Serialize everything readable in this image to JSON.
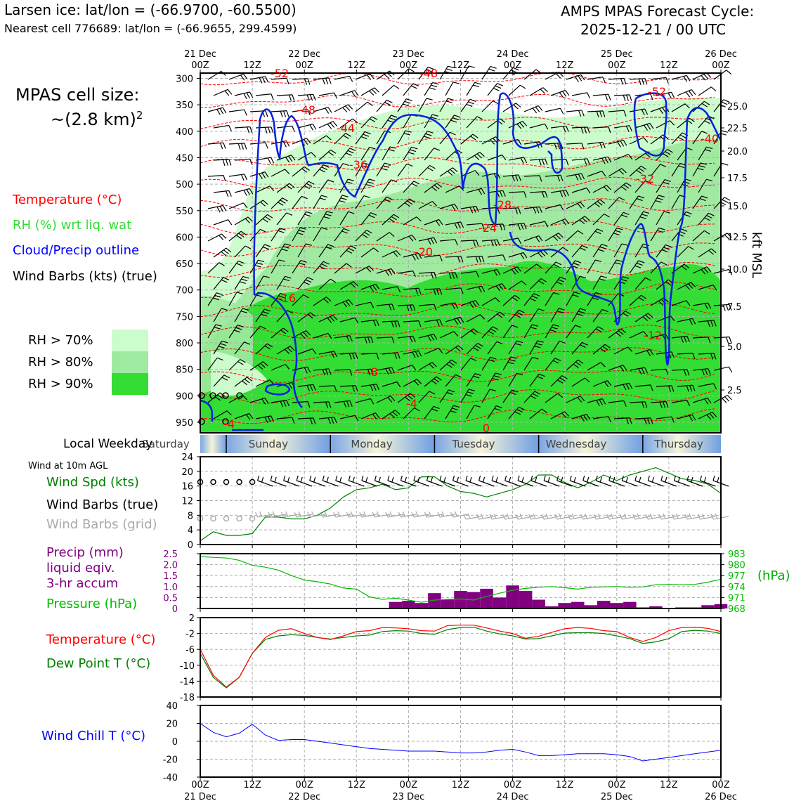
{
  "header": {
    "title_left": "Larsen ice: lat/lon = (-66.9700, -60.5500)",
    "subtitle_left": "Nearest cell 776689: lat/lon = (-66.9655, 299.4599)",
    "title_right_1": "AMPS MPAS Forecast Cycle:",
    "title_right_2": "2025-12-21 / 00 UTC"
  },
  "cell_size": {
    "label": "MPAS cell size:",
    "value": "~(2.8 km)",
    "exp": "2"
  },
  "legend": {
    "temperature": "Temperature (°C)",
    "rh": "RH (%) wrt liq. wat",
    "cloud": "Cloud/Precip outline",
    "wind": "Wind Barbs (kts) (true)",
    "rh70": "RH > 70%",
    "rh80": "RH > 80%",
    "rh90": "RH > 90%"
  },
  "colors": {
    "rh70": "#ccfccc",
    "rh80": "#a0e9a0",
    "rh90": "#33dd33",
    "temp": "#ff0000",
    "dew": "#008000",
    "pressure": "#00aa00",
    "precip": "#800080",
    "windchill": "#0000ff",
    "cloud": "#0022dd"
  },
  "time_axis": {
    "ticks": [
      "00Z",
      "12Z",
      "00Z",
      "12Z",
      "00Z",
      "12Z",
      "00Z",
      "12Z",
      "00Z",
      "12Z",
      "00Z"
    ],
    "dates": [
      "21 Dec",
      "22 Dec",
      "23 Dec",
      "24 Dec",
      "25 Dec",
      "26 Dec"
    ]
  },
  "weekday": {
    "label": "Local Weekday",
    "days": [
      "Saturday",
      "Sunday",
      "Monday",
      "Tuesday",
      "Wednesday",
      "Thursday"
    ]
  },
  "cross_section": {
    "y_label": "kft MSL",
    "pressure_ticks": [
      300,
      350,
      400,
      450,
      500,
      550,
      600,
      650,
      700,
      750,
      800,
      850,
      900,
      950
    ],
    "height_ticks": [
      "25.0",
      "22.5",
      "20.0",
      "17.5",
      "15.0",
      "12.5",
      "10.0",
      "7.5",
      "5.0",
      "2.5"
    ],
    "temp_labels": [
      "-52",
      "-48",
      "-48",
      "-44",
      "-36",
      "-28",
      "-24",
      "-20",
      "-16",
      "-8",
      "-4",
      "-4",
      "0",
      "-52",
      "-40",
      "-32",
      "-12"
    ]
  },
  "wind_panel": {
    "title": "Wind at 10m AGL",
    "spd_label": "Wind Spd (kts)",
    "barbs_true_label": "Wind Barbs (true)",
    "barbs_grid_label": "Wind Barbs (grid)",
    "y_ticks": [
      "0",
      "4",
      "8",
      "12",
      "16",
      "20",
      "24"
    ]
  },
  "precip_panel": {
    "label_1": "Precip (mm)",
    "label_2": "liquid eqiv.",
    "label_3": "3-hr accum",
    "pressure_label": "Pressure (hPa)",
    "right_unit": "(hPa)",
    "left_ticks": [
      "0",
      "0.5",
      "1.0",
      "1.5",
      "2.0",
      "2.5"
    ],
    "right_ticks": [
      "968",
      "971",
      "974",
      "977",
      "980",
      "983"
    ]
  },
  "temp_panel": {
    "temp_label": "Temperature (°C)",
    "dew_label": "Dew Point T (°C)",
    "y_ticks": [
      "2",
      "-2",
      "-6",
      "-10",
      "-14",
      "-18"
    ]
  },
  "chill_panel": {
    "label": "Wind Chill T (°C)",
    "y_ticks": [
      "40",
      "20",
      "0",
      "-20",
      "-40"
    ]
  },
  "chart_data": [
    {
      "type": "line",
      "title": "Wind at 10m AGL",
      "ylabel": "Wind Spd (kts)",
      "ylim": [
        0,
        24
      ],
      "x_hours": [
        0,
        3,
        6,
        9,
        12,
        15,
        18,
        21,
        24,
        27,
        30,
        33,
        36,
        39,
        42,
        45,
        48,
        51,
        54,
        57,
        60,
        63,
        66,
        69,
        72,
        75,
        78,
        81,
        84,
        87,
        90,
        93,
        96,
        99,
        102,
        105,
        108,
        111,
        114,
        117,
        120
      ],
      "series": [
        {
          "name": "Wind Spd (kts)",
          "values": [
            1,
            3.5,
            2.5,
            2.5,
            3,
            7.5,
            7.5,
            7,
            7,
            8,
            10,
            13,
            15,
            15.5,
            16.5,
            15,
            15.5,
            18.5,
            18.5,
            16,
            14.5,
            14,
            13,
            14,
            15,
            16.5,
            19,
            19,
            17,
            15.5,
            17,
            19,
            17.5,
            19,
            20,
            21,
            19.5,
            18,
            17.5,
            16.5,
            14
          ]
        }
      ]
    },
    {
      "type": "bar",
      "title": "Precip (mm) liquid eqiv. 3-hr accum",
      "ylim": [
        0,
        2.5
      ],
      "x_hours": [
        45,
        48,
        51,
        54,
        57,
        60,
        63,
        66,
        69,
        72,
        75,
        78,
        81,
        84,
        87,
        90,
        93,
        96,
        99,
        102,
        105,
        108,
        111,
        114,
        117,
        120
      ],
      "values": [
        0.3,
        0.35,
        0.25,
        0.7,
        0.4,
        0.8,
        0.75,
        0.9,
        0.5,
        1.05,
        0.8,
        0.4,
        0.1,
        0.25,
        0.3,
        0.15,
        0.35,
        0.25,
        0.3,
        0.05,
        0.1,
        0.0,
        0.05,
        0.05,
        0.15,
        0.2
      ]
    },
    {
      "type": "line",
      "title": "Pressure (hPa)",
      "ylim": [
        968,
        983
      ],
      "x_hours": [
        0,
        3,
        6,
        9,
        12,
        15,
        18,
        21,
        24,
        27,
        30,
        33,
        36,
        39,
        42,
        45,
        48,
        51,
        54,
        57,
        60,
        63,
        66,
        69,
        72,
        75,
        78,
        81,
        84,
        87,
        90,
        93,
        96,
        99,
        102,
        105,
        108,
        111,
        114,
        117,
        120
      ],
      "series": [
        {
          "name": "Pressure (hPa)",
          "values": [
            982.2,
            982,
            981.8,
            981.2,
            979.8,
            979.3,
            978.5,
            977,
            975.8,
            975.3,
            974.7,
            973.6,
            973.3,
            971.2,
            970.5,
            970.8,
            970.3,
            969.7,
            970.3,
            970.5,
            970.6,
            970.3,
            971.3,
            972.2,
            973,
            973.5,
            973.8,
            974,
            973.7,
            973.3,
            973.8,
            973.9,
            974,
            973.8,
            973.9,
            974.5,
            974.6,
            974.5,
            974.6,
            975.2,
            976
          ]
        }
      ]
    },
    {
      "type": "line",
      "title": "Temperature / Dew Point",
      "ylim": [
        -18,
        2
      ],
      "x_hours": [
        0,
        3,
        6,
        9,
        12,
        15,
        18,
        21,
        24,
        27,
        30,
        33,
        36,
        39,
        42,
        45,
        48,
        51,
        54,
        57,
        60,
        63,
        66,
        69,
        72,
        75,
        78,
        81,
        84,
        87,
        90,
        93,
        96,
        99,
        102,
        105,
        108,
        111,
        114,
        117,
        120
      ],
      "series": [
        {
          "name": "Temperature (°C)",
          "values": [
            -6,
            -12.5,
            -15.5,
            -13,
            -7,
            -3,
            -1.2,
            -0.8,
            -2,
            -3,
            -3.5,
            -2.6,
            -1.5,
            -1.3,
            -0.5,
            -0.6,
            -0.8,
            -1.3,
            -1.4,
            0,
            0.1,
            0.1,
            -0.6,
            -1.4,
            -2,
            -3.2,
            -2.7,
            -1.7,
            -0.8,
            -0.5,
            -0.7,
            -1.3,
            -1.5,
            -3,
            -4,
            -3,
            -1.3,
            -0.5,
            -0.4,
            -0.7,
            -1.5
          ]
        },
        {
          "name": "Dew Point T (°C)",
          "values": [
            -7,
            -13,
            -15.7,
            -13,
            -7,
            -3.5,
            -2.6,
            -2.3,
            -2.5,
            -3,
            -3.4,
            -3,
            -2.6,
            -2.4,
            -1.5,
            -1.3,
            -1.4,
            -2,
            -2.2,
            -1,
            -0.5,
            -0.4,
            -1.4,
            -2.1,
            -2.6,
            -3.4,
            -3.3,
            -2.6,
            -1.9,
            -1.8,
            -1.8,
            -2,
            -2.6,
            -3.3,
            -4.5,
            -4.1,
            -3.3,
            -1.5,
            -1.2,
            -1.4,
            -2
          ]
        }
      ]
    },
    {
      "type": "line",
      "title": "Wind Chill T (°C)",
      "ylim": [
        -40,
        40
      ],
      "x_hours": [
        0,
        3,
        6,
        9,
        12,
        15,
        18,
        21,
        24,
        27,
        30,
        33,
        36,
        39,
        42,
        45,
        48,
        51,
        54,
        57,
        60,
        63,
        66,
        69,
        72,
        75,
        78,
        81,
        84,
        87,
        90,
        93,
        96,
        99,
        102,
        105,
        108,
        111,
        114,
        117,
        120
      ],
      "series": [
        {
          "name": "Wind Chill T (°C)",
          "values": [
            20,
            10,
            5,
            9,
            19,
            7,
            1,
            2,
            2,
            0,
            -2,
            -4,
            -6,
            -8,
            -9,
            -10,
            -11,
            -11,
            -11,
            -12,
            -13,
            -13,
            -12,
            -10,
            -9,
            -12,
            -16,
            -16,
            -15,
            -14,
            -14,
            -14,
            -15,
            -17,
            -22,
            -20,
            -18,
            -16,
            -14,
            -12,
            -10
          ]
        }
      ]
    }
  ]
}
